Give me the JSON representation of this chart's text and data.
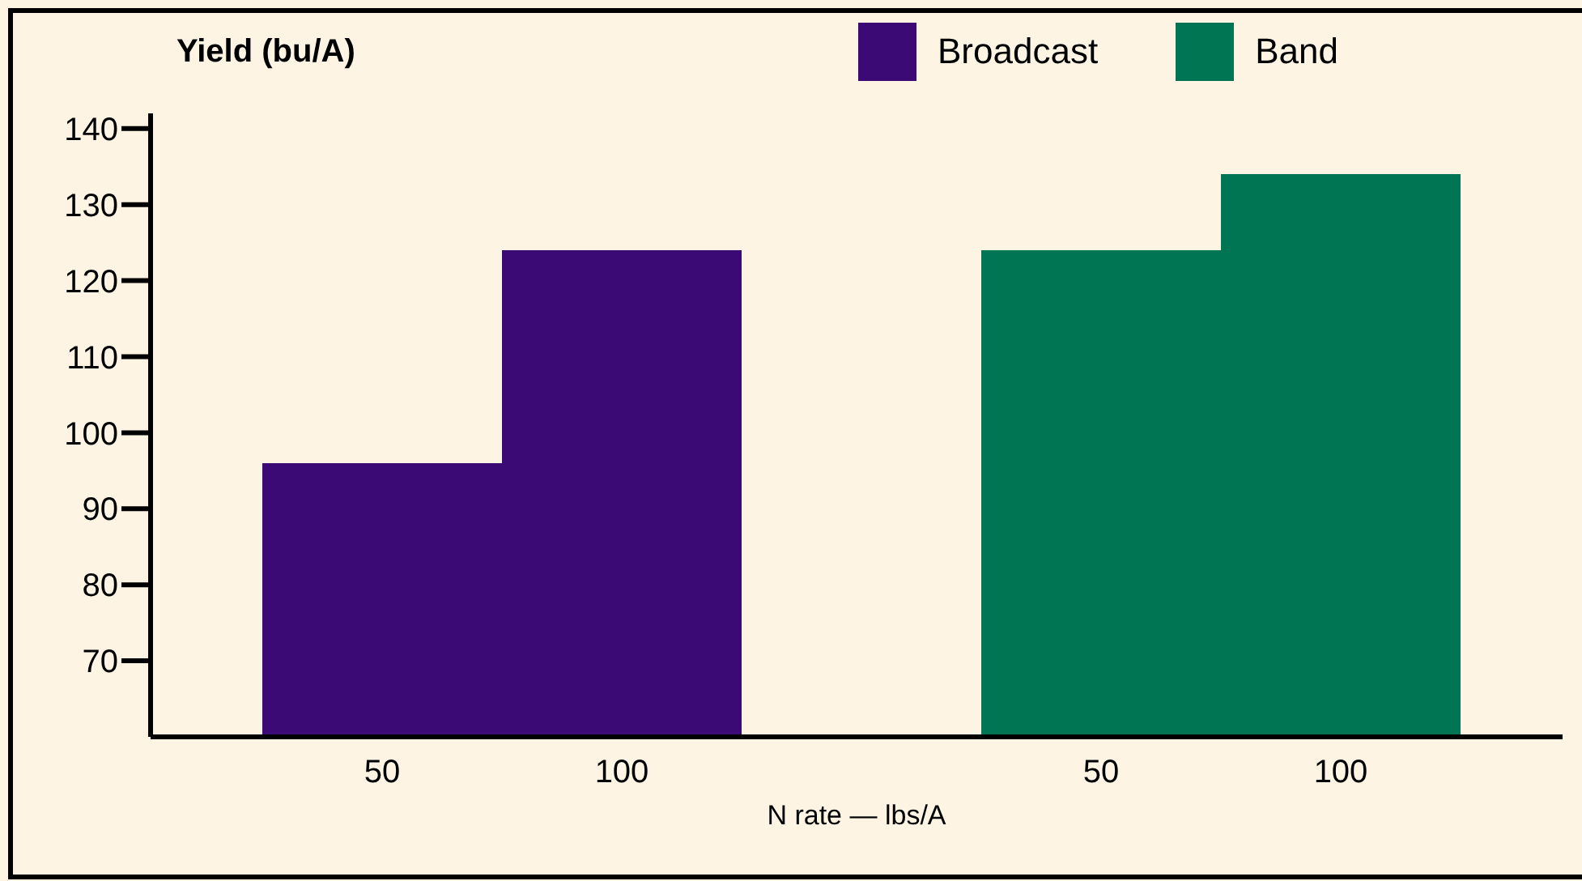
{
  "chart_data": {
    "type": "bar",
    "ylabel": "Yield (bu/A)",
    "xlabel": "N rate — lbs/A",
    "categories": [
      "50",
      "100",
      null,
      "50",
      "100"
    ],
    "series": [
      {
        "name": "Broadcast",
        "color": "#3c0a74",
        "values": [
          96,
          124,
          null,
          null,
          null
        ]
      },
      {
        "name": "Band",
        "color": "#007554",
        "values": [
          null,
          null,
          null,
          124,
          134
        ]
      }
    ],
    "ylim": [
      60,
      142
    ],
    "yticks": [
      70,
      80,
      90,
      100,
      110,
      120,
      130,
      140
    ],
    "grid": false,
    "legend": "top right"
  }
}
